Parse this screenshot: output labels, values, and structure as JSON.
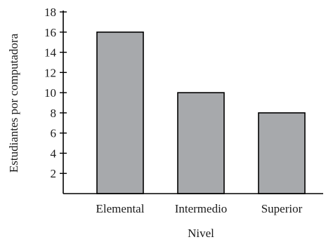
{
  "chart_data": {
    "type": "bar",
    "categories": [
      "Elemental",
      "Intermedio",
      "Superior"
    ],
    "values": [
      16,
      10,
      8
    ],
    "xlabel": "Nivel",
    "ylabel": "Estudiantes por computadora",
    "ylim": [
      0,
      18
    ],
    "yticks": [
      2,
      4,
      6,
      8,
      10,
      12,
      14,
      16,
      18
    ],
    "grid": false,
    "legend": "none",
    "colors": {
      "bar_fill": "#a7a9ac",
      "bar_stroke": "#000000",
      "axis": "#000000",
      "text": "#1a1a1a"
    }
  }
}
